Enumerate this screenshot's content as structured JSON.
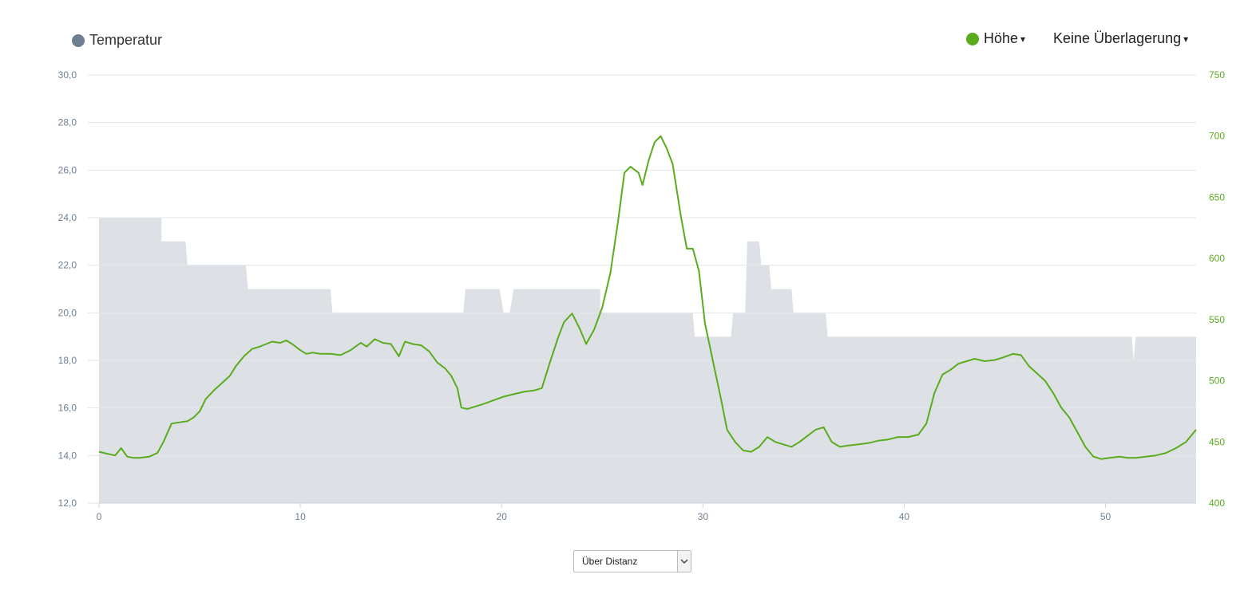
{
  "legend": {
    "temperature_label": "Temperatur",
    "temperature_color": "#6e7f91",
    "elevation_label": "Höhe",
    "elevation_color": "#5aab1d",
    "overlay_label": "Keine Überlagerung",
    "caret": "▾"
  },
  "select": {
    "value": "Über Distanz"
  },
  "chart_data": {
    "type": "area",
    "x_range": [
      0,
      54.5
    ],
    "x_ticks": [
      "0",
      "10",
      "20",
      "30",
      "40",
      "50"
    ],
    "x_tick_values": [
      0,
      10,
      20,
      30,
      40,
      50
    ],
    "y_left": {
      "range": [
        12,
        30
      ],
      "ticks": [
        "12,0",
        "14,0",
        "16,0",
        "18,0",
        "20,0",
        "22,0",
        "24,0",
        "26,0",
        "28,0",
        "30,0"
      ],
      "tick_values": [
        12,
        14,
        16,
        18,
        20,
        22,
        24,
        26,
        28,
        30
      ]
    },
    "y_right": {
      "range": [
        400,
        750
      ],
      "ticks": [
        "400",
        "450",
        "500",
        "550",
        "600",
        "650",
        "700",
        "750"
      ],
      "tick_values": [
        400,
        450,
        500,
        550,
        600,
        650,
        700,
        750
      ]
    },
    "grid": true,
    "series": [
      {
        "name": "Temperatur",
        "axis": "left",
        "style": "step-area",
        "color": "#dde1e6",
        "points": [
          [
            0,
            24
          ],
          [
            3.1,
            24
          ],
          [
            3.1,
            23
          ],
          [
            4.3,
            23
          ],
          [
            4.4,
            22
          ],
          [
            7.3,
            22
          ],
          [
            7.4,
            21
          ],
          [
            11.5,
            21
          ],
          [
            11.6,
            20
          ],
          [
            18.1,
            20
          ],
          [
            18.2,
            21
          ],
          [
            19.9,
            21
          ],
          [
            20.1,
            20
          ],
          [
            20.4,
            20
          ],
          [
            20.6,
            21
          ],
          [
            24.9,
            21
          ],
          [
            24.9,
            20
          ],
          [
            29.5,
            20
          ],
          [
            29.6,
            19
          ],
          [
            31.4,
            19
          ],
          [
            31.5,
            20
          ],
          [
            32.1,
            20
          ],
          [
            32.2,
            23
          ],
          [
            32.8,
            23
          ],
          [
            32.9,
            22
          ],
          [
            33.3,
            22
          ],
          [
            33.4,
            21
          ],
          [
            34.4,
            21
          ],
          [
            34.5,
            20
          ],
          [
            36.1,
            20
          ],
          [
            36.2,
            19
          ],
          [
            51.3,
            19
          ],
          [
            51.4,
            18
          ],
          [
            51.5,
            19
          ],
          [
            54.5,
            19
          ]
        ]
      },
      {
        "name": "Höhe",
        "axis": "right",
        "style": "line",
        "color": "#5aab1d",
        "points": [
          [
            0,
            442
          ],
          [
            0.5,
            440
          ],
          [
            0.8,
            439
          ],
          [
            1.1,
            445
          ],
          [
            1.4,
            438
          ],
          [
            1.7,
            437
          ],
          [
            2.0,
            437
          ],
          [
            2.5,
            438
          ],
          [
            2.9,
            441
          ],
          [
            3.2,
            450
          ],
          [
            3.6,
            465
          ],
          [
            4.0,
            466
          ],
          [
            4.4,
            467
          ],
          [
            4.7,
            470
          ],
          [
            5.0,
            475
          ],
          [
            5.3,
            485
          ],
          [
            5.7,
            492
          ],
          [
            6.1,
            498
          ],
          [
            6.5,
            504
          ],
          [
            6.8,
            512
          ],
          [
            7.2,
            520
          ],
          [
            7.6,
            526
          ],
          [
            8.0,
            528
          ],
          [
            8.3,
            530
          ],
          [
            8.6,
            532
          ],
          [
            9.0,
            531
          ],
          [
            9.3,
            533
          ],
          [
            9.6,
            530
          ],
          [
            10.0,
            525
          ],
          [
            10.3,
            522
          ],
          [
            10.6,
            523
          ],
          [
            11.0,
            522
          ],
          [
            11.5,
            522
          ],
          [
            12.0,
            521
          ],
          [
            12.5,
            525
          ],
          [
            13.0,
            531
          ],
          [
            13.3,
            528
          ],
          [
            13.7,
            534
          ],
          [
            14.1,
            531
          ],
          [
            14.5,
            530
          ],
          [
            14.9,
            520
          ],
          [
            15.2,
            532
          ],
          [
            15.6,
            530
          ],
          [
            16.0,
            529
          ],
          [
            16.4,
            524
          ],
          [
            16.8,
            515
          ],
          [
            17.2,
            510
          ],
          [
            17.5,
            504
          ],
          [
            17.8,
            494
          ],
          [
            18.0,
            478
          ],
          [
            18.3,
            477
          ],
          [
            18.7,
            479
          ],
          [
            19.1,
            481
          ],
          [
            19.6,
            484
          ],
          [
            20.1,
            487
          ],
          [
            20.6,
            489
          ],
          [
            21.1,
            491
          ],
          [
            21.6,
            492
          ],
          [
            22.0,
            494
          ],
          [
            22.4,
            515
          ],
          [
            22.8,
            535
          ],
          [
            23.1,
            548
          ],
          [
            23.5,
            555
          ],
          [
            23.9,
            542
          ],
          [
            24.2,
            530
          ],
          [
            24.6,
            542
          ],
          [
            25.0,
            560
          ],
          [
            25.4,
            588
          ],
          [
            25.8,
            632
          ],
          [
            26.1,
            670
          ],
          [
            26.4,
            675
          ],
          [
            26.8,
            670
          ],
          [
            27.0,
            660
          ],
          [
            27.3,
            680
          ],
          [
            27.6,
            695
          ],
          [
            27.9,
            700
          ],
          [
            28.2,
            690
          ],
          [
            28.5,
            677
          ],
          [
            28.9,
            635
          ],
          [
            29.2,
            608
          ],
          [
            29.5,
            608
          ],
          [
            29.8,
            590
          ],
          [
            30.1,
            547
          ],
          [
            30.5,
            516
          ],
          [
            30.9,
            485
          ],
          [
            31.2,
            460
          ],
          [
            31.6,
            450
          ],
          [
            32.0,
            443
          ],
          [
            32.4,
            442
          ],
          [
            32.8,
            446
          ],
          [
            33.2,
            454
          ],
          [
            33.6,
            450
          ],
          [
            34.0,
            448
          ],
          [
            34.4,
            446
          ],
          [
            34.8,
            450
          ],
          [
            35.2,
            455
          ],
          [
            35.6,
            460
          ],
          [
            36.0,
            462
          ],
          [
            36.4,
            450
          ],
          [
            36.8,
            446
          ],
          [
            37.2,
            447
          ],
          [
            37.7,
            448
          ],
          [
            38.2,
            449
          ],
          [
            38.7,
            451
          ],
          [
            39.2,
            452
          ],
          [
            39.7,
            454
          ],
          [
            40.2,
            454
          ],
          [
            40.7,
            456
          ],
          [
            41.1,
            465
          ],
          [
            41.5,
            490
          ],
          [
            41.9,
            505
          ],
          [
            42.3,
            509
          ],
          [
            42.7,
            514
          ],
          [
            43.1,
            516
          ],
          [
            43.5,
            518
          ],
          [
            44.0,
            516
          ],
          [
            44.5,
            517
          ],
          [
            44.9,
            519
          ],
          [
            45.4,
            522
          ],
          [
            45.8,
            521
          ],
          [
            46.2,
            512
          ],
          [
            46.6,
            506
          ],
          [
            47.0,
            500
          ],
          [
            47.4,
            490
          ],
          [
            47.8,
            478
          ],
          [
            48.2,
            470
          ],
          [
            48.6,
            458
          ],
          [
            49.0,
            446
          ],
          [
            49.4,
            438
          ],
          [
            49.8,
            436
          ],
          [
            50.2,
            437
          ],
          [
            50.7,
            438
          ],
          [
            51.1,
            437
          ],
          [
            51.5,
            437
          ],
          [
            52.0,
            438
          ],
          [
            52.5,
            439
          ],
          [
            53.0,
            441
          ],
          [
            53.5,
            445
          ],
          [
            54.0,
            450
          ],
          [
            54.5,
            460
          ]
        ]
      }
    ]
  }
}
